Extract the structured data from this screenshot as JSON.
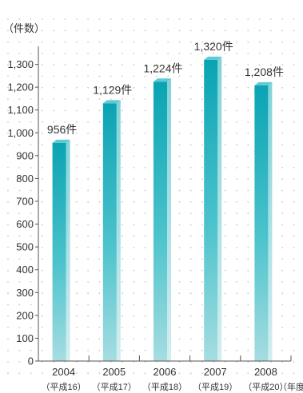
{
  "chart_data": {
    "type": "bar",
    "unit_label": "（件数）",
    "categories": [
      "2004",
      "2005",
      "2006",
      "2007",
      "2008"
    ],
    "era_labels": [
      "（平成16）",
      "（平成17）",
      "（平成18）",
      "（平成19）",
      "（平成20）"
    ],
    "x_unit_label": "（年度）",
    "values": [
      956,
      1129,
      1224,
      1320,
      1208
    ],
    "data_labels": [
      "956件",
      "1,129件",
      "1,224件",
      "1,320件",
      "1,208件"
    ],
    "y_ticks": [
      0,
      100,
      200,
      300,
      400,
      500,
      600,
      700,
      800,
      900,
      1000,
      1100,
      1200,
      1300
    ],
    "y_tick_labels": [
      "0",
      "100",
      "200",
      "300",
      "400",
      "500",
      "600",
      "700",
      "800",
      "900",
      "1,000",
      "1,100",
      "1,200",
      "1,300"
    ],
    "ylim": [
      0,
      1400
    ],
    "grid": "dotted",
    "colors": {
      "bar_dark": "#0aa3b3",
      "bar_mid": "#4cc3cc",
      "bar_light": "#a6dde1",
      "grid_dot": "#c8c8c8"
    }
  }
}
